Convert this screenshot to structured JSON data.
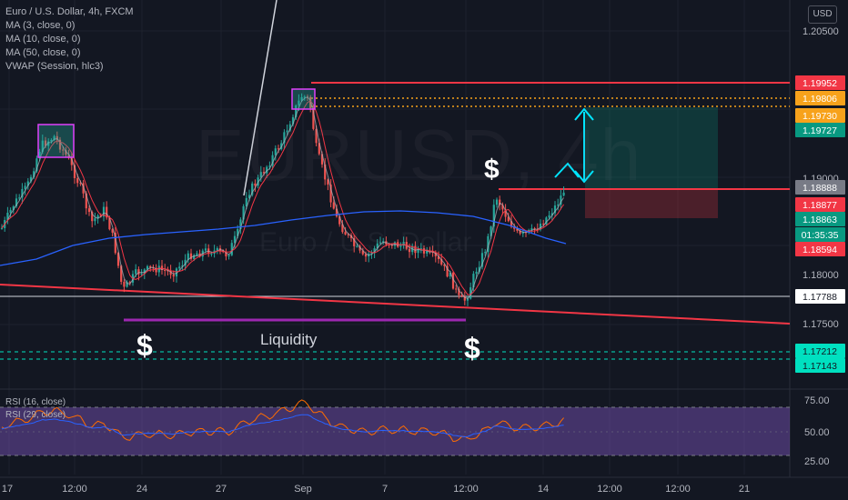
{
  "chart_data": {
    "type": "candlestick",
    "title": "Euro / U.S. Dollar, 4h, FXCM",
    "symbol_watermark": "EURUSD, 4h",
    "symbol_subtitle": "Euro / U.S. Dollar",
    "currency": "USD",
    "indicators": [
      "MA (3, close, 0)",
      "MA (10, close, 0)",
      "MA (50, close, 0)",
      "VWAP (Session, hlc3)"
    ],
    "rsi_indicators": [
      "RSI (16, close)",
      "RSI (29, close)"
    ],
    "x_ticks": [
      "17",
      "12:00",
      "24",
      "27",
      "Sep",
      "7",
      "12:00",
      "14",
      "12:00",
      "17",
      "12:00",
      "21",
      "12:00"
    ],
    "y_ticks": [
      "1.20500",
      "1.19000",
      "1.18000",
      "1.17500"
    ],
    "rsi_ticks": [
      "75.00",
      "50.00",
      "25.00"
    ],
    "price_labels": [
      {
        "value": "1.19952",
        "color": "#f23645"
      },
      {
        "value": "1.19806",
        "color": "#f7a21b"
      },
      {
        "value": "1.19730",
        "color": "#f7a21b"
      },
      {
        "value": "1.19727",
        "color": "#089981"
      },
      {
        "value": "1.18888",
        "color": "#787b86"
      },
      {
        "value": "1.18877",
        "color": "#f23645"
      },
      {
        "value": "1.18863",
        "color": "#089981"
      },
      {
        "value": "01:35:35",
        "color": "#089981"
      },
      {
        "value": "1.18594",
        "color": "#f23645"
      },
      {
        "value": "1.17788",
        "color": "#ffffff"
      },
      {
        "value": "1.17212",
        "color": "#00e0c0"
      },
      {
        "value": "1.17143",
        "color": "#00e0c0"
      }
    ],
    "annotations": {
      "liquidity": "Liquidity",
      "dollar": "$"
    },
    "grid": true
  }
}
